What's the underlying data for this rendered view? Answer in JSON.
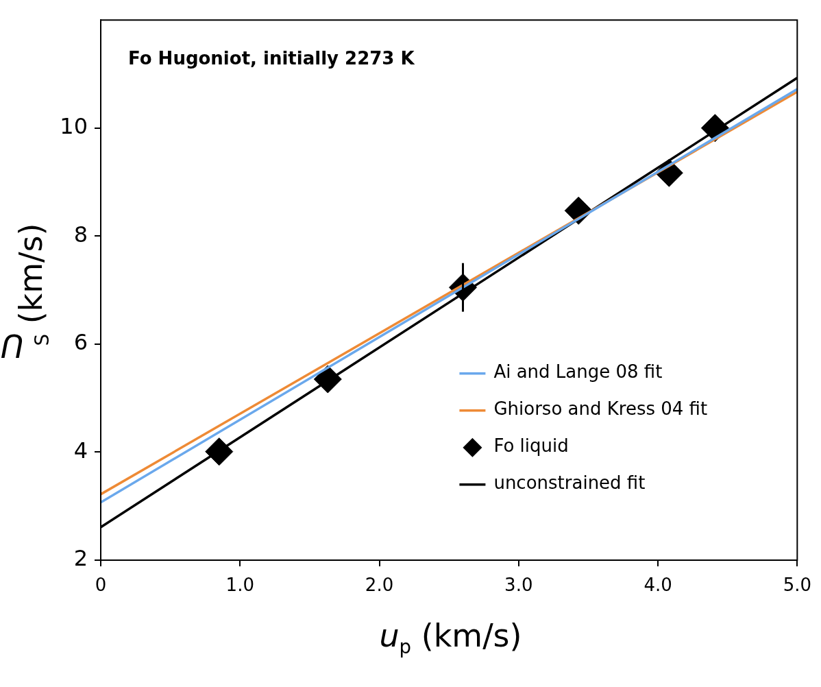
{
  "chart_data": {
    "type": "scatter",
    "title": "Fo Hugoniot, initially 2273 K",
    "xlabel": "u$_{p}$ (km/s)",
    "ylabel": "U$_{S}$ (km/s)",
    "xlim": [
      0,
      5
    ],
    "ylim": [
      2,
      12
    ],
    "xticks": [
      0,
      {
        "value": 1,
        "label": "1.0"
      },
      {
        "value": 2,
        "label": "2.0"
      },
      {
        "value": 3,
        "label": "3.0"
      },
      {
        "value": 4,
        "label": "4.0"
      },
      {
        "value": 5,
        "label": "5.0"
      }
    ],
    "yticks": [
      2,
      4,
      6,
      8,
      10
    ],
    "grid": false,
    "legend": "bottom right",
    "series": [
      {
        "name": "Ai and Lange 08 fit",
        "type": "line",
        "color": "#6aa8ec",
        "x": [
          0,
          5
        ],
        "values": [
          3.07,
          10.72
        ],
        "marker": "none"
      },
      {
        "name": "Ghiorso and Kress 04 fit",
        "type": "line",
        "color": "#ee8a35",
        "x": [
          0,
          5
        ],
        "values": [
          3.22,
          10.67
        ],
        "marker": "none"
      },
      {
        "name": "Fo liquid",
        "color": "#000000",
        "x": [
          0.85,
          1.63,
          2.6,
          3.43,
          4.08,
          4.41
        ],
        "values": [
          4.01,
          5.35,
          7.05,
          8.47,
          9.17,
          10.0
        ],
        "errors": [
          null,
          null,
          0.45,
          null,
          null,
          null
        ],
        "marker": "diamond"
      },
      {
        "name": "unconstrained fit",
        "type": "line",
        "color": "#000000",
        "x": [
          0,
          5
        ],
        "values": [
          2.61,
          10.93
        ],
        "marker": "none"
      }
    ]
  }
}
